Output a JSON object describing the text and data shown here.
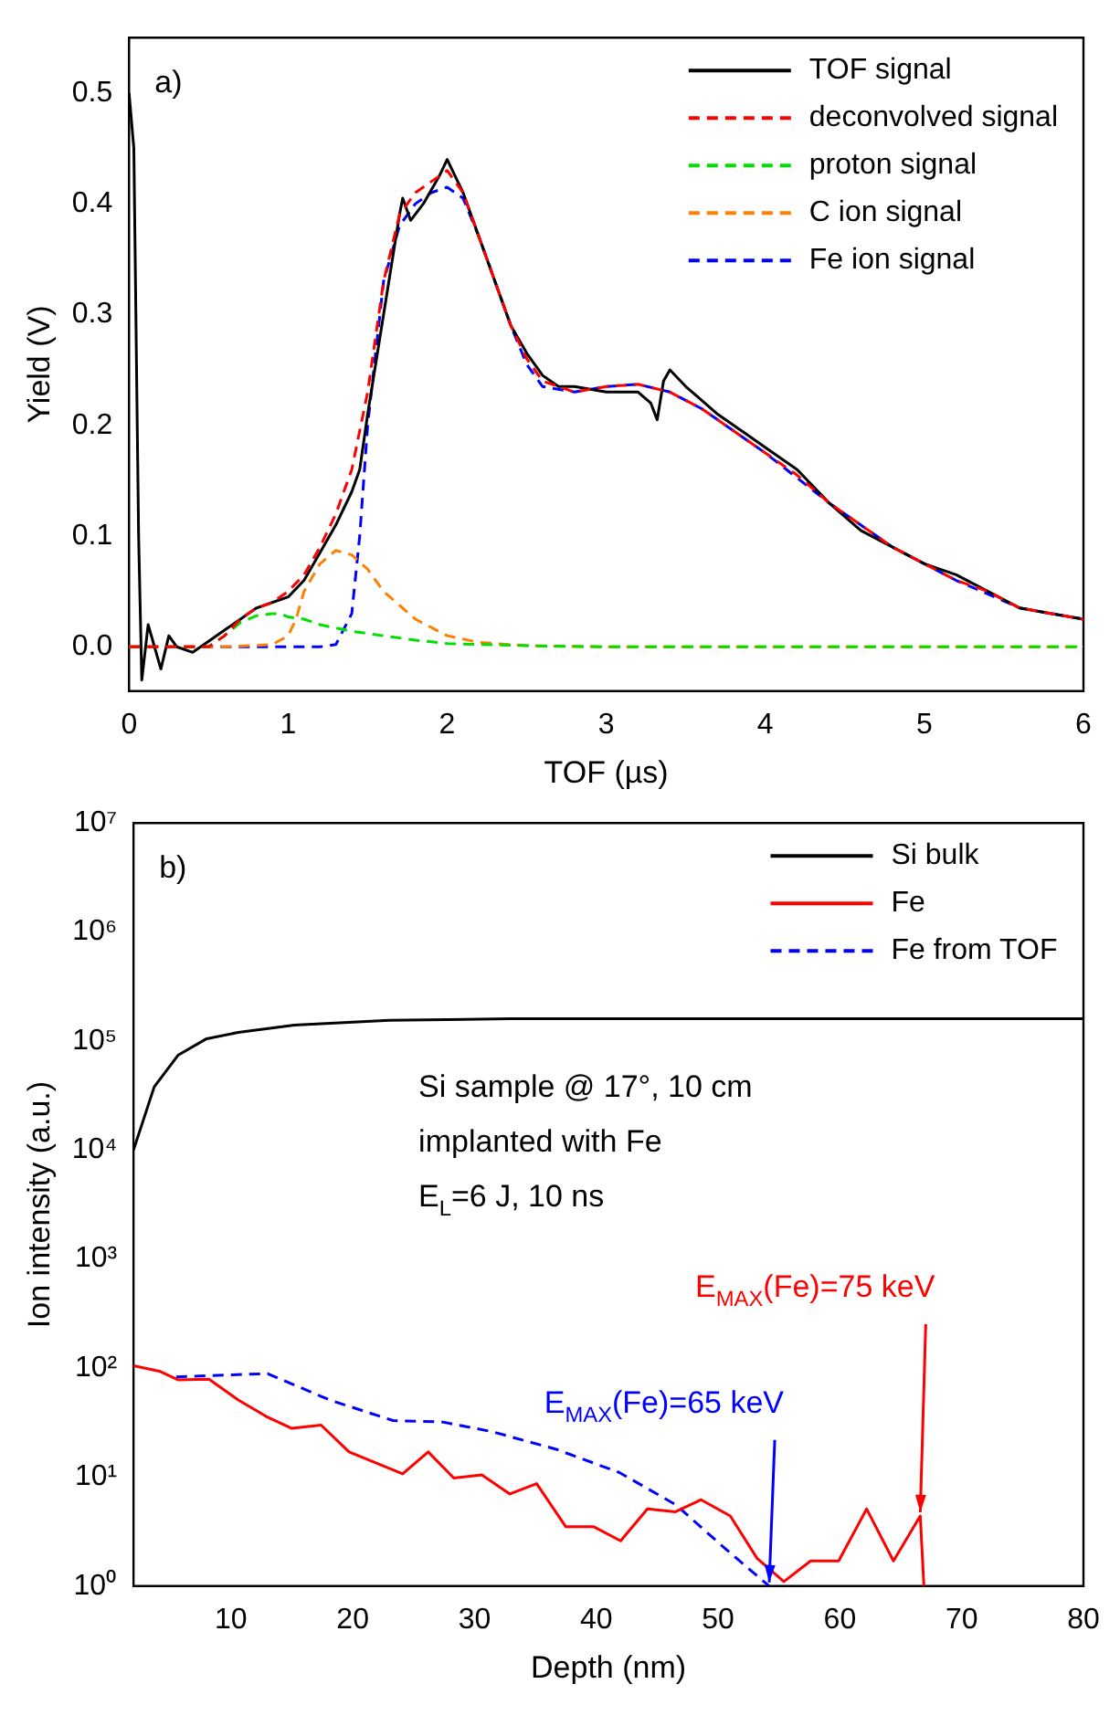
{
  "chart_data": [
    {
      "type": "line",
      "xlabel": "TOF (µs)",
      "ylabel": "Yield (V)",
      "xlim": [
        0,
        6
      ],
      "xticks": [
        0,
        1,
        2,
        3,
        4,
        5,
        6
      ],
      "ylim": [
        -0.04,
        0.55
      ],
      "yticks": [
        {
          "value": 0,
          "label": "0.0"
        },
        {
          "value": 0.1,
          "label": "0.1"
        },
        {
          "value": 0.2,
          "label": "0.2"
        },
        {
          "value": 0.3,
          "label": "0.3"
        },
        {
          "value": 0.4,
          "label": "0.4"
        },
        {
          "value": 0.5,
          "label": "0.5"
        }
      ],
      "legend": "top right",
      "grid": false,
      "annotations": [
        "a)"
      ],
      "series": [
        {
          "name": "TOF signal",
          "color": "#000000",
          "line_style": "solid",
          "x": [
            0,
            0.03,
            0.06,
            0.08,
            0.12,
            0.2,
            0.25,
            0.3,
            0.4,
            0.5,
            0.6,
            0.7,
            0.8,
            0.9,
            1.0,
            1.1,
            1.2,
            1.3,
            1.4,
            1.45,
            1.5,
            1.6,
            1.7,
            1.72,
            1.77,
            1.85,
            1.95,
            2.0,
            2.05,
            2.1,
            2.2,
            2.3,
            2.4,
            2.5,
            2.6,
            2.7,
            2.8,
            3.0,
            3.2,
            3.28,
            3.32,
            3.36,
            3.4,
            3.5,
            3.7,
            3.9,
            4.0,
            4.2,
            4.4,
            4.6,
            4.8,
            5.0,
            5.2,
            5.4,
            5.6,
            5.8,
            6.0
          ],
          "values": [
            0.5,
            0.45,
            0.1,
            -0.03,
            0.02,
            -0.02,
            0.01,
            0.0,
            -0.005,
            0.005,
            0.015,
            0.025,
            0.035,
            0.04,
            0.045,
            0.06,
            0.085,
            0.11,
            0.14,
            0.16,
            0.21,
            0.3,
            0.39,
            0.405,
            0.385,
            0.4,
            0.425,
            0.44,
            0.425,
            0.41,
            0.37,
            0.33,
            0.29,
            0.265,
            0.245,
            0.235,
            0.235,
            0.23,
            0.23,
            0.22,
            0.205,
            0.24,
            0.25,
            0.235,
            0.21,
            0.19,
            0.18,
            0.16,
            0.13,
            0.105,
            0.09,
            0.075,
            0.065,
            0.05,
            0.035,
            0.03,
            0.025
          ]
        },
        {
          "name": "deconvolved signal",
          "color": "#ff0000",
          "line_style": "dashed",
          "x": [
            0,
            0.5,
            0.6,
            0.7,
            0.8,
            0.9,
            1.0,
            1.1,
            1.2,
            1.3,
            1.4,
            1.5,
            1.6,
            1.7,
            1.8,
            1.9,
            2.0,
            2.1,
            2.2,
            2.3,
            2.4,
            2.5,
            2.6,
            2.8,
            3.0,
            3.2,
            3.4,
            3.6,
            3.8,
            4.0,
            4.2,
            4.4,
            4.6,
            4.8,
            5.0,
            5.2,
            5.4,
            5.6,
            5.8,
            6.0
          ],
          "values": [
            0,
            0,
            0.01,
            0.025,
            0.035,
            0.04,
            0.05,
            0.065,
            0.09,
            0.12,
            0.16,
            0.23,
            0.33,
            0.39,
            0.41,
            0.42,
            0.43,
            0.41,
            0.37,
            0.33,
            0.29,
            0.26,
            0.24,
            0.23,
            0.235,
            0.237,
            0.23,
            0.215,
            0.195,
            0.175,
            0.155,
            0.13,
            0.11,
            0.09,
            0.075,
            0.06,
            0.05,
            0.035,
            0.03,
            0.025
          ]
        },
        {
          "name": "proton signal",
          "color": "#00e000",
          "line_style": "dashed",
          "x": [
            0,
            0.5,
            0.6,
            0.7,
            0.8,
            0.9,
            0.95,
            1.0,
            1.1,
            1.2,
            1.4,
            1.6,
            1.8,
            2.0,
            2.5,
            3.0,
            6.0
          ],
          "values": [
            0,
            0,
            0.01,
            0.022,
            0.028,
            0.03,
            0.03,
            0.027,
            0.025,
            0.02,
            0.014,
            0.01,
            0.006,
            0.003,
            0.001,
            0,
            0
          ]
        },
        {
          "name": "C ion signal",
          "color": "#ff8000",
          "line_style": "dashed",
          "x": [
            0,
            0.6,
            0.9,
            1.0,
            1.05,
            1.1,
            1.2,
            1.3,
            1.4,
            1.5,
            1.6,
            1.8,
            2.0,
            2.2,
            2.5,
            3.0,
            6.0
          ],
          "values": [
            0,
            0,
            0.002,
            0.01,
            0.025,
            0.05,
            0.075,
            0.087,
            0.083,
            0.07,
            0.05,
            0.025,
            0.01,
            0.004,
            0.001,
            0,
            0
          ]
        },
        {
          "name": "Fe ion signal",
          "color": "#0000ff",
          "line_style": "dashed",
          "x": [
            0,
            1.2,
            1.3,
            1.4,
            1.45,
            1.5,
            1.6,
            1.7,
            1.8,
            1.9,
            2.0,
            2.1,
            2.2,
            2.3,
            2.4,
            2.5,
            2.6,
            2.8,
            3.0,
            3.2,
            3.4,
            3.6,
            3.8,
            4.0,
            4.4,
            4.8,
            5.2,
            5.6,
            6.0
          ],
          "values": [
            0,
            0,
            0.002,
            0.03,
            0.1,
            0.2,
            0.33,
            0.38,
            0.4,
            0.41,
            0.415,
            0.405,
            0.37,
            0.33,
            0.29,
            0.255,
            0.235,
            0.23,
            0.235,
            0.237,
            0.23,
            0.215,
            0.195,
            0.175,
            0.13,
            0.09,
            0.06,
            0.035,
            0.025
          ]
        }
      ]
    },
    {
      "type": "line",
      "xlabel": "Depth (nm)",
      "ylabel": "Ion intensity (a.u.)",
      "xlim": [
        2,
        80
      ],
      "xticks": [
        10,
        20,
        30,
        40,
        50,
        60,
        70,
        80
      ],
      "ylim": [
        1,
        10000000
      ],
      "yticks": [
        {
          "value": 1,
          "label": "10⁰"
        },
        {
          "value": 10,
          "label": "10¹"
        },
        {
          "value": 100,
          "label": "10²"
        },
        {
          "value": 1000,
          "label": "10³"
        },
        {
          "value": 10000,
          "label": "10⁴"
        },
        {
          "value": 100000,
          "label": "10⁵"
        },
        {
          "value": 1000000,
          "label": "10⁶"
        },
        {
          "value": 10000000,
          "label": "10⁷"
        }
      ],
      "log": "y",
      "legend": "top right",
      "grid": false,
      "annotations": [
        "b)",
        "Si sample @ 17°, 10 cm",
        "implanted with Fe",
        "E$_{L}$=6 J, 10 ns",
        {
          "text": "E$_{MAX}$(Fe)=65 keV",
          "x": 54.2,
          "y": 1
        },
        {
          "text": "E$_{MAX}$(Fe)=75 keV",
          "x": 66.6,
          "y": 4.4
        }
      ],
      "series": [
        {
          "name": "Si bulk",
          "color": "#000000",
          "line_style": "solid",
          "x": [
            2,
            3.7,
            5.65,
            8,
            10.6,
            15.2,
            23,
            33,
            80
          ],
          "values": [
            10000,
            38000,
            74000,
            105000,
            120000,
            140000,
            155000,
            160000,
            160000
          ]
        },
        {
          "name": "Fe",
          "color": "#ff0000",
          "line_style": "solid",
          "x": [
            2,
            4.2,
            5.65,
            8.2,
            10.6,
            12.9,
            15,
            17.4,
            19.7,
            24.1,
            26.2,
            28.3,
            30.6,
            32.9,
            35.1,
            37.5,
            39.8,
            42,
            44.2,
            46.5,
            48.6,
            51,
            53.2,
            55.4,
            57.6,
            59.9,
            62.2,
            64.4,
            66.6,
            66.9
          ],
          "values": [
            105,
            93,
            78,
            79,
            51,
            36,
            28,
            30,
            17,
            10.7,
            17,
            9.8,
            10.5,
            7,
            8.7,
            3.5,
            3.5,
            2.6,
            5.1,
            4.8,
            6.2,
            4.4,
            1.8,
            1.1,
            1.7,
            1.7,
            5.1,
            1.7,
            4.4,
            1
          ]
        },
        {
          "name": "Fe from TOF",
          "color": "#0000ff",
          "line_style": "dashed",
          "x": [
            5.5,
            13,
            18.1,
            23.3,
            27.4,
            31.5,
            36.7,
            41.9,
            46.5,
            50.6,
            54.2
          ],
          "values": [
            83,
            89,
            51,
            33,
            32,
            26,
            18,
            11,
            5.6,
            2.2,
            1.0
          ]
        }
      ]
    }
  ]
}
